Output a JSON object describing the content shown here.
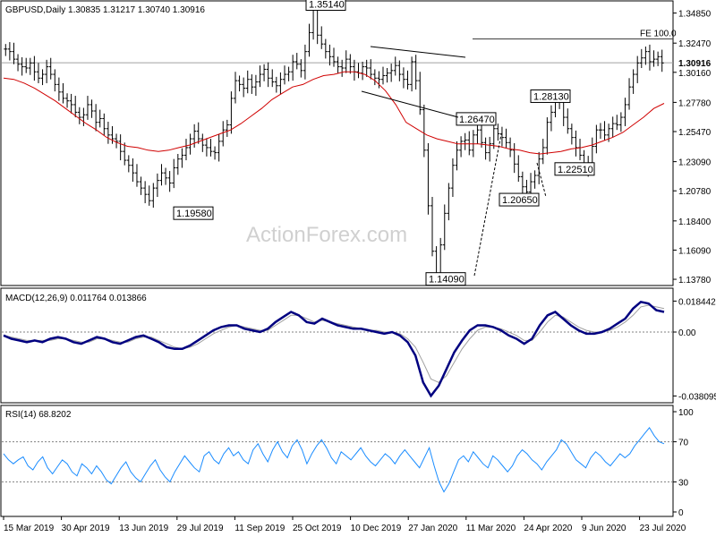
{
  "chart_data": [
    {
      "type": "candlestick",
      "title": "GBPUSD,Daily  1.30835 1.31217 1.30740 1.30916",
      "watermark": "ActionForex.com",
      "yticks": [
        "1.34850",
        "1.32470",
        "1.30160",
        "1.27780",
        "1.25470",
        "1.23090",
        "1.20780",
        "1.18400",
        "1.16090",
        "1.13780"
      ],
      "ytick_values": [
        1.3485,
        1.3247,
        1.3016,
        1.2778,
        1.2547,
        1.2309,
        1.2078,
        1.184,
        1.1609,
        1.1378
      ],
      "ylim": [
        1.135,
        1.356
      ],
      "last_price_label": "1.30916",
      "last_price": 1.30916,
      "fe_label": "FE 100.0",
      "fe_level": 1.328,
      "annotations": [
        {
          "text": "1.35140",
          "value": 1.3514
        },
        {
          "text": "1.19580",
          "value": 1.1958
        },
        {
          "text": "1.26470",
          "value": 1.2647
        },
        {
          "text": "1.28130",
          "value": 1.2813
        },
        {
          "text": "1.22510",
          "value": 1.2251
        },
        {
          "text": "1.20650",
          "value": 1.2065
        },
        {
          "text": "1.14090",
          "value": 1.1409
        }
      ],
      "close_series": [
        1.32,
        1.318,
        1.312,
        1.308,
        1.306,
        1.305,
        1.309,
        1.302,
        1.297,
        1.3,
        1.306,
        1.3,
        1.292,
        1.286,
        1.281,
        1.279,
        1.276,
        1.27,
        1.266,
        1.268,
        1.276,
        1.271,
        1.262,
        1.265,
        1.257,
        1.252,
        1.249,
        1.247,
        1.239,
        1.232,
        1.228,
        1.222,
        1.215,
        1.21,
        1.205,
        1.2,
        1.21,
        1.216,
        1.222,
        1.218,
        1.214,
        1.226,
        1.233,
        1.236,
        1.242,
        1.249,
        1.255,
        1.249,
        1.244,
        1.242,
        1.239,
        1.238,
        1.247,
        1.256,
        1.26,
        1.281,
        1.295,
        1.292,
        1.289,
        1.296,
        1.29,
        1.294,
        1.3,
        1.304,
        1.297,
        1.294,
        1.291,
        1.296,
        1.3,
        1.302,
        1.31,
        1.308,
        1.303,
        1.318,
        1.333,
        1.351,
        1.331,
        1.324,
        1.318,
        1.314,
        1.31,
        1.306,
        1.305,
        1.312,
        1.306,
        1.302,
        1.301,
        1.306,
        1.305,
        1.3,
        1.297,
        1.296,
        1.299,
        1.301,
        1.303,
        1.307,
        1.3,
        1.296,
        1.292,
        1.31,
        1.295,
        1.272,
        1.24,
        1.196,
        1.16,
        1.141,
        1.165,
        1.19,
        1.21,
        1.228,
        1.24,
        1.247,
        1.248,
        1.24,
        1.252,
        1.256,
        1.246,
        1.238,
        1.245,
        1.257,
        1.253,
        1.25,
        1.246,
        1.24,
        1.229,
        1.219,
        1.211,
        1.207,
        1.215,
        1.22,
        1.233,
        1.242,
        1.262,
        1.27,
        1.278,
        1.28,
        1.266,
        1.257,
        1.25,
        1.242,
        1.236,
        1.226,
        1.23,
        1.243,
        1.256,
        1.256,
        1.252,
        1.257,
        1.261,
        1.26,
        1.266,
        1.276,
        1.29,
        1.3,
        1.309,
        1.313,
        1.318,
        1.31,
        1.312,
        1.314,
        1.309
      ],
      "ma_series": [
        1.297,
        1.296,
        1.293,
        1.289,
        1.284,
        1.279,
        1.273,
        1.267,
        1.261,
        1.256,
        1.25,
        1.246,
        1.243,
        1.242,
        1.24,
        1.239,
        1.24,
        1.242,
        1.244,
        1.247,
        1.25,
        1.253,
        1.256,
        1.261,
        1.267,
        1.273,
        1.28,
        1.285,
        1.29,
        1.292,
        1.296,
        1.299,
        1.3,
        1.302,
        1.302,
        1.3,
        1.295,
        1.287,
        1.276,
        1.262,
        1.257,
        1.252,
        1.249,
        1.247,
        1.245,
        1.245,
        1.245,
        1.244,
        1.243,
        1.241,
        1.24,
        1.238,
        1.237,
        1.238,
        1.239,
        1.241,
        1.242,
        1.244,
        1.247,
        1.25,
        1.254,
        1.26,
        1.266,
        1.273,
        1.277
      ]
    },
    {
      "type": "line",
      "title": "MACD(12,26,9) 0.011764 0.013866",
      "yticks": [
        "0.018442",
        "0.00",
        "-0.038095"
      ],
      "ytick_values": [
        0.018442,
        0.0,
        -0.038095
      ],
      "ylim": [
        -0.04,
        0.024
      ],
      "series": [
        {
          "name": "MACD",
          "values": [
            -0.002,
            -0.004,
            -0.005,
            -0.006,
            -0.005,
            -0.006,
            -0.004,
            -0.003,
            -0.004,
            -0.006,
            -0.007,
            -0.005,
            -0.003,
            -0.004,
            -0.006,
            -0.007,
            -0.005,
            -0.003,
            -0.002,
            -0.004,
            -0.006,
            -0.009,
            -0.01,
            -0.01,
            -0.008,
            -0.005,
            -0.002,
            0.001,
            0.003,
            0.004,
            0.004,
            0.002,
            0.001,
            0.0,
            0.002,
            0.006,
            0.009,
            0.012,
            0.01,
            0.006,
            0.005,
            0.008,
            0.006,
            0.004,
            0.003,
            0.002,
            0.002,
            0.001,
            0.0,
            -0.001,
            0.0,
            -0.002,
            -0.006,
            -0.014,
            -0.03,
            -0.038,
            -0.032,
            -0.022,
            -0.012,
            -0.005,
            0.001,
            0.004,
            0.004,
            0.003,
            0.001,
            -0.002,
            -0.004,
            -0.007,
            -0.004,
            0.004,
            0.01,
            0.012,
            0.008,
            0.004,
            0.001,
            -0.001,
            -0.001,
            0.0,
            0.002,
            0.005,
            0.008,
            0.014,
            0.018,
            0.017,
            0.013,
            0.012
          ]
        },
        {
          "name": "Signal",
          "values": [
            -0.002,
            -0.003,
            -0.004,
            -0.005,
            -0.005,
            -0.005,
            -0.005,
            -0.004,
            -0.004,
            -0.005,
            -0.006,
            -0.006,
            -0.004,
            -0.004,
            -0.005,
            -0.006,
            -0.006,
            -0.004,
            -0.003,
            -0.003,
            -0.005,
            -0.007,
            -0.009,
            -0.01,
            -0.009,
            -0.007,
            -0.004,
            -0.001,
            0.001,
            0.003,
            0.004,
            0.003,
            0.002,
            0.001,
            0.001,
            0.004,
            0.007,
            0.01,
            0.01,
            0.008,
            0.006,
            0.007,
            0.006,
            0.005,
            0.004,
            0.003,
            0.002,
            0.001,
            0.001,
            0.0,
            0.0,
            -0.001,
            -0.004,
            -0.009,
            -0.018,
            -0.028,
            -0.03,
            -0.026,
            -0.018,
            -0.01,
            -0.004,
            0.001,
            0.003,
            0.003,
            0.002,
            0.0,
            -0.002,
            -0.005,
            -0.005,
            0.0,
            0.006,
            0.01,
            0.009,
            0.006,
            0.003,
            0.001,
            0.0,
            0.0,
            0.001,
            0.003,
            0.006,
            0.01,
            0.015,
            0.016,
            0.015,
            0.014
          ]
        }
      ]
    },
    {
      "type": "line",
      "title": "RSI(14) 68.8202",
      "yticks": [
        "100",
        "70",
        "30",
        "0"
      ],
      "ytick_values": [
        100,
        70,
        30,
        0
      ],
      "ylim": [
        0,
        100
      ],
      "series": [
        {
          "name": "RSI",
          "values": [
            58,
            52,
            48,
            52,
            55,
            46,
            42,
            50,
            55,
            44,
            38,
            45,
            52,
            48,
            40,
            36,
            48,
            44,
            38,
            46,
            40,
            32,
            28,
            36,
            44,
            50,
            40,
            34,
            30,
            38,
            46,
            52,
            42,
            35,
            30,
            40,
            48,
            56,
            50,
            44,
            40,
            56,
            60,
            52,
            48,
            58,
            64,
            56,
            60,
            52,
            48,
            62,
            68,
            58,
            50,
            62,
            70,
            60,
            54,
            66,
            72,
            62,
            48,
            58,
            66,
            72,
            64,
            54,
            48,
            60,
            56,
            52,
            58,
            64,
            56,
            50,
            46,
            52,
            58,
            54,
            48,
            56,
            62,
            56,
            50,
            44,
            54,
            64,
            46,
            30,
            20,
            28,
            40,
            52,
            56,
            50,
            60,
            54,
            48,
            44,
            56,
            52,
            46,
            40,
            46,
            56,
            62,
            58,
            52,
            48,
            42,
            50,
            56,
            62,
            72,
            68,
            60,
            52,
            48,
            44,
            54,
            60,
            56,
            50,
            46,
            52,
            58,
            54,
            58,
            66,
            72,
            78,
            84,
            76,
            70,
            68
          ]
        }
      ]
    }
  ],
  "x_axis": {
    "tick_labels": [
      "15 Mar 2019",
      "30 Apr 2019",
      "13 Jun 2019",
      "29 Jul 2019",
      "11 Sep 2019",
      "25 Oct 2019",
      "10 Dec 2019",
      "27 Jan 2020",
      "11 Mar 2020",
      "24 Apr 2020",
      "9 Jun 2020",
      "23 Jul 2020"
    ]
  }
}
